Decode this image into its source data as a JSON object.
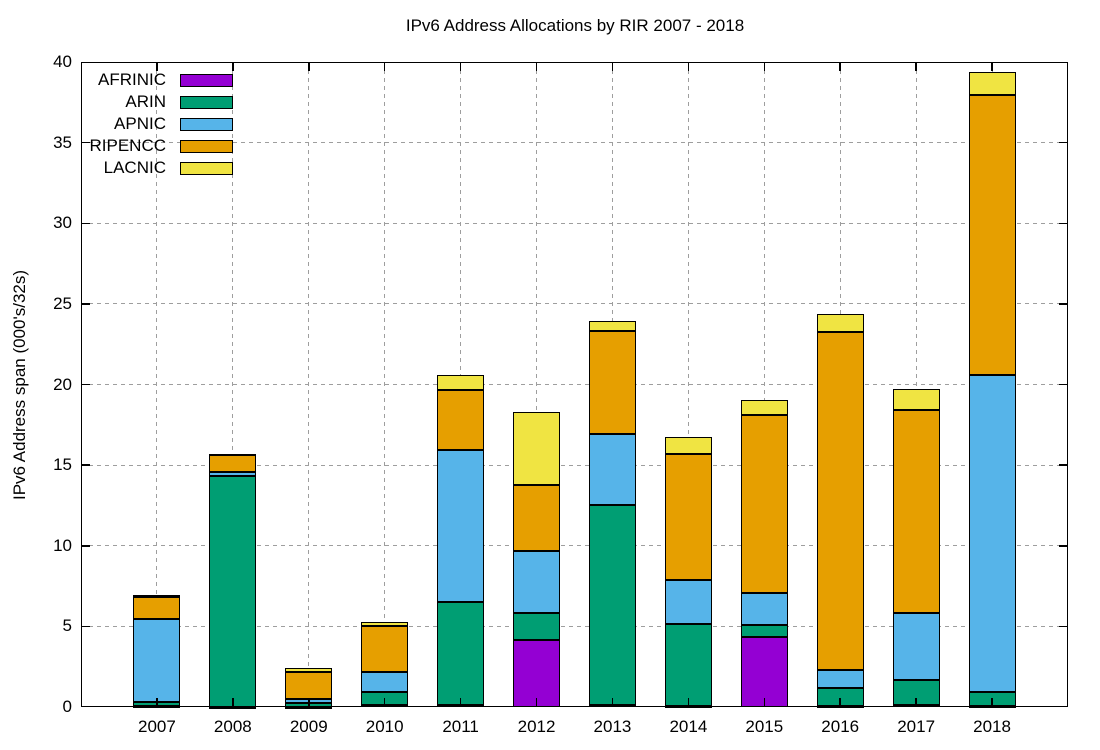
{
  "title": "IPv6 Address Allocations by RIR 2007 - 2018",
  "chart_data": {
    "type": "bar",
    "stacked": true,
    "title": "IPv6 Address Allocations by RIR 2007 - 2018",
    "xlabel": "",
    "ylabel": "IPv6 Address span (000's/32s)",
    "ylim": [
      0,
      40
    ],
    "ytick_step": 5,
    "grid": true,
    "grid_color": "#9e9e9e",
    "border_color": "#000000",
    "background_color": "#ffffff",
    "legend_position": "top-left",
    "categories": [
      "2007",
      "2008",
      "2009",
      "2010",
      "2011",
      "2012",
      "2013",
      "2014",
      "2015",
      "2016",
      "2017",
      "2018"
    ],
    "series": [
      {
        "name": "AFRINIC",
        "color": "#9400d3",
        "values": [
          0.05,
          0.03,
          0.03,
          0.1,
          0.15,
          4.15,
          0.1,
          0.05,
          4.35,
          0.05,
          0.15,
          0.05
        ]
      },
      {
        "name": "ARIN",
        "color": "#009e73",
        "values": [
          0.25,
          14.3,
          0.22,
          0.82,
          6.35,
          1.7,
          12.45,
          5.1,
          0.75,
          1.1,
          1.5,
          0.9
        ]
      },
      {
        "name": "APNIC",
        "color": "#56b4e9",
        "values": [
          5.15,
          0.22,
          0.27,
          1.25,
          9.45,
          3.8,
          4.4,
          2.7,
          1.95,
          1.15,
          4.15,
          19.65
        ]
      },
      {
        "name": "RIPENCC",
        "color": "#e69f00",
        "values": [
          1.35,
          1.12,
          1.65,
          2.85,
          3.7,
          4.1,
          6.35,
          7.85,
          11.05,
          20.95,
          12.6,
          17.35
        ]
      },
      {
        "name": "LACNIC",
        "color": "#f0e442",
        "values": [
          0.15,
          0.03,
          0.25,
          0.25,
          0.93,
          4.55,
          0.65,
          1.05,
          0.95,
          1.1,
          1.35,
          1.4
        ]
      }
    ],
    "totals": [
      6.95,
      15.7,
      2.42,
      5.27,
      20.58,
      18.3,
      23.95,
      16.75,
      19.05,
      24.35,
      19.75,
      39.35
    ]
  }
}
